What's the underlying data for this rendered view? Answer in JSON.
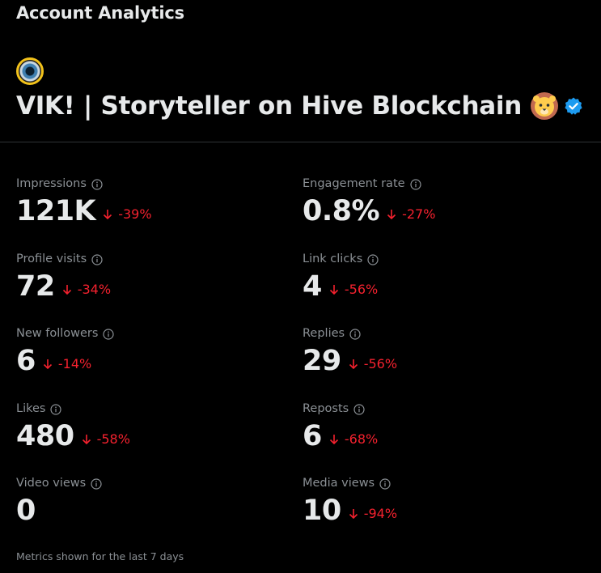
{
  "header": {
    "title": "Account Analytics"
  },
  "account": {
    "name": "VIK! | Storyteller on Hive Blockchain",
    "emoji": "lion-face-emoji",
    "verified_icon": "verified-badge-icon"
  },
  "colors": {
    "background": "#000000",
    "text_primary": "#e7e9ea",
    "text_secondary": "#8b9095",
    "negative_change": "#f4212e",
    "verified_blue": "#1d9bf0",
    "avatar_ring": "#f2c21b"
  },
  "metrics": [
    {
      "label": "Impressions",
      "value": "121K",
      "change": "-39%"
    },
    {
      "label": "Engagement rate",
      "value": "0.8%",
      "change": "-27%"
    },
    {
      "label": "Profile visits",
      "value": "72",
      "change": "-34%"
    },
    {
      "label": "Link clicks",
      "value": "4",
      "change": "-56%"
    },
    {
      "label": "New followers",
      "value": "6",
      "change": "-14%"
    },
    {
      "label": "Replies",
      "value": "29",
      "change": "-56%"
    },
    {
      "label": "Likes",
      "value": "480",
      "change": "-58%"
    },
    {
      "label": "Reposts",
      "value": "6",
      "change": "-68%"
    },
    {
      "label": "Video views",
      "value": "0",
      "change": ""
    },
    {
      "label": "Media views",
      "value": "10",
      "change": "-94%"
    }
  ],
  "footer": {
    "note": "Metrics shown for the last 7 days"
  }
}
